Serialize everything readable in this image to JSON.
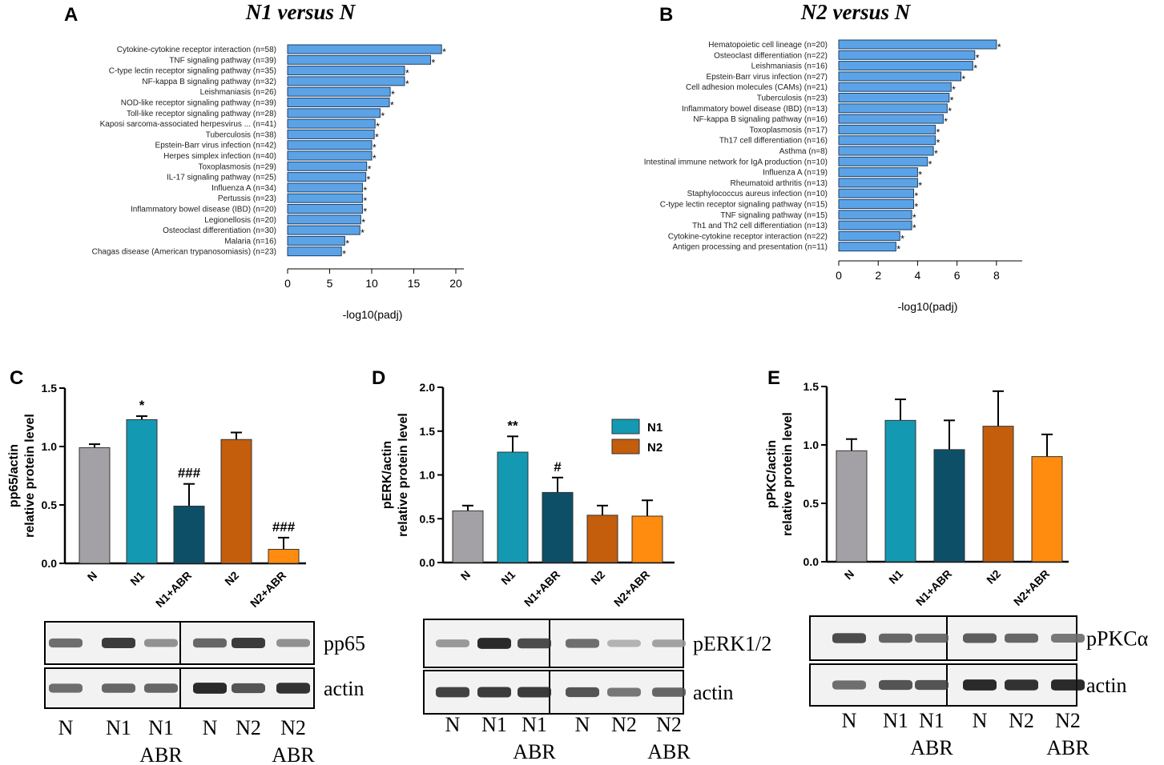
{
  "figure_labels": [
    "A",
    "B",
    "C",
    "D",
    "E"
  ],
  "chart_data": [
    {
      "id": "A",
      "type": "bar",
      "orientation": "horizontal",
      "title": "N1 versus N",
      "xlabel": "-log10(padj)",
      "xlim": [
        0,
        20
      ],
      "xticks": [
        0,
        5,
        10,
        15,
        20
      ],
      "color": "#5ba3e6",
      "categories": [
        "Cytokine-cytokine receptor interaction (n=58)",
        "TNF signaling pathway (n=39)",
        "C-type lectin receptor signaling pathway (n=35)",
        "NF-kappa B signaling pathway (n=32)",
        "Leishmaniasis (n=26)",
        "NOD-like receptor signaling pathway (n=39)",
        "Toll-like receptor signaling pathway (n=28)",
        "Kaposi sarcoma-associated herpesvirus ... (n=41)",
        "Tuberculosis (n=38)",
        "Epstein-Barr virus infection (n=42)",
        "Herpes simplex infection (n=40)",
        "Toxoplasmosis (n=29)",
        "IL-17 signaling pathway (n=25)",
        "Influenza A (n=34)",
        "Pertussis (n=23)",
        "Inflammatory bowel disease (IBD) (n=20)",
        "Legionellosis (n=20)",
        "Osteoclast differentiation (n=30)",
        "Malaria (n=16)",
        "Chagas disease (American trypanosomiasis) (n=23)"
      ],
      "values": [
        18.3,
        17.0,
        13.9,
        13.9,
        12.2,
        12.1,
        11.0,
        10.4,
        10.3,
        10.0,
        10.0,
        9.4,
        9.3,
        8.9,
        8.9,
        8.9,
        8.7,
        8.6,
        6.8,
        6.4
      ],
      "marker": "*"
    },
    {
      "id": "B",
      "type": "bar",
      "orientation": "horizontal",
      "title": "N2 versus N",
      "xlabel": "-log10(padj)",
      "xlim": [
        0,
        8.9
      ],
      "xticks": [
        0,
        2,
        4,
        6,
        8
      ],
      "color": "#5ba3e6",
      "categories": [
        "Hematopoietic cell lineage (n=20)",
        "Osteoclast differentiation (n=22)",
        "Leishmaniasis (n=16)",
        "Epstein-Barr virus infection (n=27)",
        "Cell adhesion molecules (CAMs) (n=21)",
        "Tuberculosis (n=23)",
        "Inflammatory bowel disease (IBD) (n=13)",
        "NF-kappa B signaling pathway (n=16)",
        "Toxoplasmosis (n=17)",
        "Th17 cell differentiation (n=16)",
        "Asthma (n=8)",
        "Intestinal immune network for IgA production (n=10)",
        "Influenza A (n=19)",
        "Rheumatoid arthritis (n=13)",
        "Staphylococcus aureus infection (n=10)",
        "C-type lectin receptor signaling pathway (n=15)",
        "TNF signaling pathway (n=15)",
        "Th1 and Th2 cell differentiation (n=13)",
        "Cytokine-cytokine receptor interaction (n=22)",
        "Antigen processing and presentation (n=11)"
      ],
      "values": [
        8.0,
        6.9,
        6.8,
        6.2,
        5.7,
        5.6,
        5.5,
        5.3,
        4.9,
        4.9,
        4.8,
        4.5,
        4.0,
        4.0,
        3.8,
        3.8,
        3.7,
        3.7,
        3.1,
        2.9
      ],
      "marker": "*"
    },
    {
      "id": "C",
      "type": "bar",
      "ylabel": "pp65/actin",
      "ylabel2": "relative protein level",
      "ylim": [
        0,
        1.5
      ],
      "yticks": [
        "0.0",
        "0.5",
        "1.0",
        "1.5"
      ],
      "categories": [
        "N",
        "N1",
        "N1+ABR",
        "N2",
        "N2+ABR"
      ],
      "values": [
        0.99,
        1.23,
        0.49,
        1.06,
        0.12
      ],
      "errors": [
        0.03,
        0.03,
        0.19,
        0.06,
        0.1
      ],
      "annotations": [
        "",
        "*",
        "###",
        "",
        "###"
      ],
      "colors": [
        "#a3a1a6",
        "#1499b3",
        "#0e4f68",
        "#c45e0c",
        "#ff8b0f"
      ]
    },
    {
      "id": "D",
      "type": "bar",
      "ylabel": "pERK/actin",
      "ylabel2": "relative protein level",
      "ylim": [
        0,
        2.0
      ],
      "yticks": [
        "0.0",
        "0.5",
        "1.0",
        "1.5",
        "2.0"
      ],
      "categories": [
        "N",
        "N1",
        "N1+ABR",
        "N2",
        "N2+ABR"
      ],
      "values": [
        0.59,
        1.26,
        0.8,
        0.54,
        0.53
      ],
      "errors": [
        0.06,
        0.18,
        0.17,
        0.11,
        0.18
      ],
      "annotations": [
        "",
        "**",
        "#",
        "",
        ""
      ],
      "colors": [
        "#a3a1a6",
        "#1499b3",
        "#0e4f68",
        "#c45e0c",
        "#ff8b0f"
      ],
      "legend": [
        {
          "name": "N1",
          "color": "#1499b3"
        },
        {
          "name": "N2",
          "color": "#c45e0c"
        }
      ]
    },
    {
      "id": "E",
      "type": "bar",
      "ylabel": "pPKC/actin",
      "ylabel2": "relative protein level",
      "ylim": [
        0,
        1.5
      ],
      "yticks": [
        "0.0",
        "0.5",
        "1.0",
        "1.5"
      ],
      "categories": [
        "N",
        "N1",
        "N1+ABR",
        "N2",
        "N2+ABR"
      ],
      "values": [
        0.95,
        1.21,
        0.96,
        1.16,
        0.9
      ],
      "errors": [
        0.1,
        0.18,
        0.25,
        0.3,
        0.19
      ],
      "annotations": [
        "",
        "",
        "",
        "",
        ""
      ],
      "colors": [
        "#a3a1a6",
        "#1499b3",
        "#0e4f68",
        "#c45e0c",
        "#ff8b0f"
      ]
    }
  ],
  "blots": [
    {
      "panel": "C",
      "proteins": [
        "pp65",
        "actin"
      ],
      "lanes": [
        "N",
        "N1",
        "N1",
        "N",
        "N2",
        "N2"
      ],
      "sublabels": [
        "ABR",
        "ABR"
      ],
      "pp65": [
        0.55,
        0.85,
        0.35,
        0.6,
        0.85,
        0.35
      ],
      "actin": [
        0.55,
        0.6,
        0.6,
        0.95,
        0.7,
        0.9
      ]
    },
    {
      "panel": "D",
      "proteins": [
        "pERK1/2",
        "actin"
      ],
      "lanes": [
        "N",
        "N1",
        "N1",
        "N",
        "N2",
        "N2"
      ],
      "sublabels": [
        "ABR",
        "ABR"
      ],
      "pERK1/2": [
        0.3,
        0.95,
        0.75,
        0.55,
        0.15,
        0.25
      ],
      "actin": [
        0.8,
        0.85,
        0.85,
        0.7,
        0.5,
        0.6
      ]
    },
    {
      "panel": "E",
      "proteins": [
        "pPKCα",
        "actin"
      ],
      "lanes": [
        "N",
        "N1",
        "N1",
        "N",
        "N2",
        "N2"
      ],
      "sublabels": [
        "ABR",
        "ABR"
      ],
      "pPKCα": [
        0.75,
        0.6,
        0.55,
        0.65,
        0.6,
        0.5
      ],
      "actin": [
        0.55,
        0.7,
        0.7,
        0.95,
        0.9,
        0.95
      ]
    }
  ]
}
